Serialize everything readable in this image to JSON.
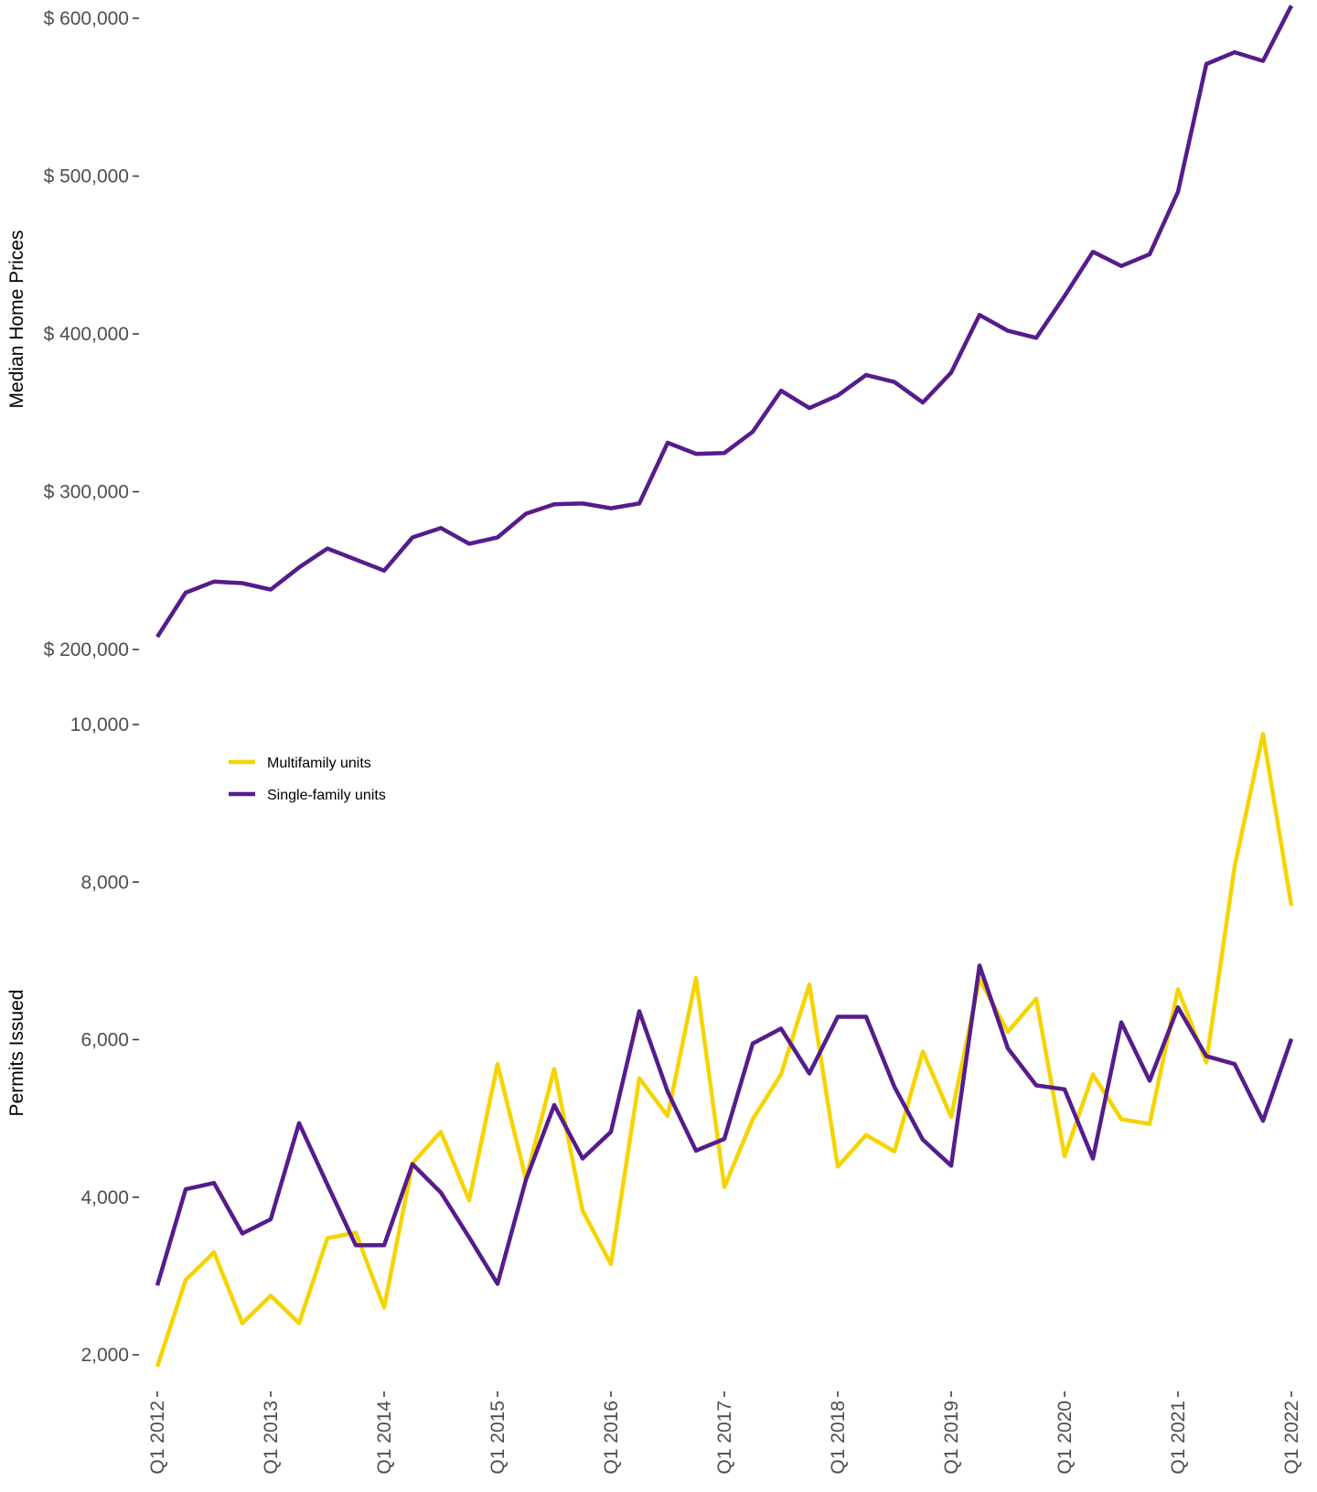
{
  "chart_data": [
    {
      "type": "line",
      "ylabel": "Median Home Prices",
      "xlabel": "",
      "ylim": [
        200000,
        600000
      ],
      "yticks": [
        200000,
        300000,
        400000,
        500000,
        600000
      ],
      "ytick_labels": [
        "$ 200,000",
        "$ 300,000",
        "$ 400,000",
        "$ 500,000",
        "$ 600,000"
      ],
      "grid": false,
      "x": [
        "Q1 2012",
        "Q2 2012",
        "Q3 2012",
        "Q4 2012",
        "Q1 2013",
        "Q2 2013",
        "Q3 2013",
        "Q4 2013",
        "Q1 2014",
        "Q2 2014",
        "Q3 2014",
        "Q4 2014",
        "Q1 2015",
        "Q2 2015",
        "Q3 2015",
        "Q4 2015",
        "Q1 2016",
        "Q2 2016",
        "Q3 2016",
        "Q4 2016",
        "Q1 2017",
        "Q2 2017",
        "Q3 2017",
        "Q4 2017",
        "Q1 2018",
        "Q2 2018",
        "Q3 2018",
        "Q4 2018",
        "Q1 2019",
        "Q2 2019",
        "Q3 2019",
        "Q4 2019",
        "Q1 2020",
        "Q2 2020",
        "Q3 2020",
        "Q4 2020",
        "Q1 2021",
        "Q2 2021",
        "Q3 2021",
        "Q4 2021",
        "Q1 2022"
      ],
      "series": [
        {
          "color": "#561c8c",
          "values": [
            208000,
            236000,
            243000,
            242000,
            238000,
            252000,
            264000,
            257000,
            250000,
            271000,
            277000,
            267000,
            271000,
            286000,
            292000,
            292500,
            289500,
            292500,
            331000,
            324000,
            324500,
            338000,
            364000,
            353000,
            361000,
            374000,
            369500,
            356500,
            375500,
            412000,
            402000,
            397500,
            424000,
            452000,
            443000,
            450500,
            490000,
            571000,
            578500,
            573000,
            608000
          ]
        }
      ]
    },
    {
      "type": "line",
      "ylabel": "Permits Issued",
      "xlabel": "",
      "ylim": [
        2000,
        10000
      ],
      "yticks": [
        2000,
        4000,
        6000,
        8000,
        10000
      ],
      "ytick_labels": [
        "2,000",
        "4,000",
        "6,000",
        "8,000",
        "10,000"
      ],
      "grid": false,
      "legend_position": "top-left",
      "x_tick_labels": [
        "Q1 2012",
        "Q1 2013",
        "Q1 2014",
        "Q1 2015",
        "Q1 2016",
        "Q1 2017",
        "Q1 2018",
        "Q1 2019",
        "Q1 2020",
        "Q1 2021",
        "Q1 2022"
      ],
      "series": [
        {
          "name": "Multifamily units",
          "color": "#f5d400",
          "values": [
            1850,
            2950,
            3300,
            2400,
            2750,
            2400,
            3480,
            3550,
            2600,
            4430,
            4830,
            3960,
            5690,
            4230,
            5630,
            3830,
            3150,
            5510,
            5030,
            6780,
            4130,
            4990,
            5560,
            6700,
            4390,
            4790,
            4580,
            5850,
            5020,
            6770,
            6100,
            6520,
            4520,
            5560,
            4990,
            4930,
            6640,
            5710,
            8200,
            9880,
            7700
          ]
        },
        {
          "name": "Single-family units",
          "color": "#561c8c",
          "values": [
            2880,
            4100,
            4180,
            3540,
            3720,
            4940,
            4160,
            3390,
            3390,
            4420,
            4060,
            3490,
            2900,
            4220,
            5170,
            4490,
            4830,
            6360,
            5340,
            4590,
            4740,
            5950,
            6140,
            5570,
            6290,
            6290,
            5400,
            4730,
            4400,
            6940,
            5890,
            5420,
            5370,
            4490,
            6220,
            5480,
            6410,
            5790,
            5690,
            4970,
            6010
          ]
        }
      ]
    }
  ]
}
